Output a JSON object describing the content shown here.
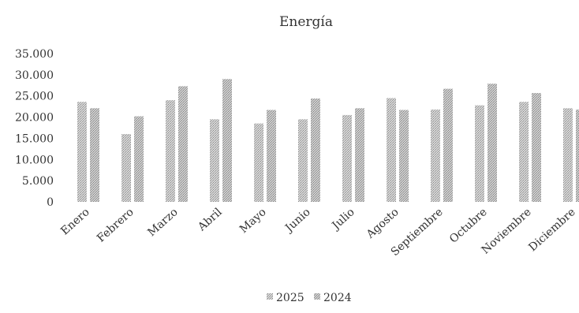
{
  "chart_data": {
    "type": "bar",
    "title": "Energía",
    "xlabel": "",
    "ylabel": "",
    "ylim": [
      0,
      35000
    ],
    "yticks": [
      0,
      5000,
      10000,
      15000,
      20000,
      25000,
      30000,
      35000
    ],
    "ytick_labels": [
      "0",
      "5.000",
      "10.000",
      "15.000",
      "20.000",
      "25.000",
      "30.000",
      "35.000"
    ],
    "categories": [
      "Enero",
      "Febrero",
      "Marzo",
      "Abril",
      "Mayo",
      "Junio",
      "Julio",
      "Agosto",
      "Septiembre",
      "Octubre",
      "Noviembre",
      "Diciembre"
    ],
    "series": [
      {
        "name": "2025",
        "color": "#bdbdbd",
        "values": [
          23600,
          16000,
          24000,
          19500,
          18500,
          19500,
          20500,
          24500,
          21800,
          22800,
          23600,
          22100
        ]
      },
      {
        "name": "2024",
        "color": "#b0b0b0",
        "values": [
          22100,
          20200,
          27300,
          29000,
          21700,
          24400,
          22100,
          21700,
          26700,
          27900,
          25700,
          21800
        ]
      }
    ],
    "grid": false,
    "legend_position": "bottom"
  }
}
